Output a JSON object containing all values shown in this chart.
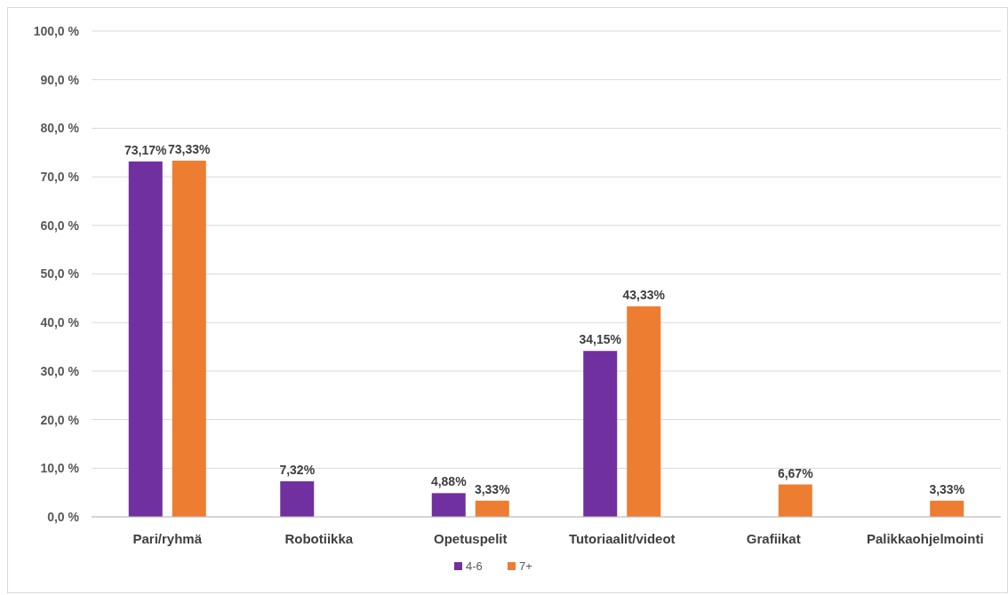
{
  "chart_data": {
    "type": "bar",
    "categories": [
      "Pari/ryhmä",
      "Robotiikka",
      "Opetuspelit",
      "Tutoriaalit/videot",
      "Grafiikat",
      "Palikkaohjelmointi"
    ],
    "series": [
      {
        "name": "4-6",
        "color": "#7030a0",
        "values": [
          73.17,
          7.32,
          4.88,
          34.15,
          null,
          null
        ],
        "value_labels": [
          "73,17%",
          "7,32%",
          "4,88%",
          "34,15%",
          null,
          null
        ]
      },
      {
        "name": "7+",
        "color": "#ed7d31",
        "values": [
          73.33,
          null,
          3.33,
          43.33,
          6.67,
          3.33
        ],
        "value_labels": [
          "73,33%",
          null,
          "3,33%",
          "43,33%",
          "6,67%",
          "3,33%"
        ]
      }
    ],
    "ylim": [
      0,
      100
    ],
    "yticks": [
      {
        "value": 0,
        "label": "0,0 %"
      },
      {
        "value": 10,
        "label": "10,0 %"
      },
      {
        "value": 20,
        "label": "20,0 %"
      },
      {
        "value": 30,
        "label": "30,0 %"
      },
      {
        "value": 40,
        "label": "40,0 %"
      },
      {
        "value": 50,
        "label": "50,0 %"
      },
      {
        "value": 60,
        "label": "60,0 %"
      },
      {
        "value": 70,
        "label": "70,0 %"
      },
      {
        "value": 80,
        "label": "80,0 %"
      },
      {
        "value": 90,
        "label": "90,0 %"
      },
      {
        "value": 100,
        "label": "100,0 %"
      }
    ],
    "grid": "y",
    "legend": "bottom"
  }
}
